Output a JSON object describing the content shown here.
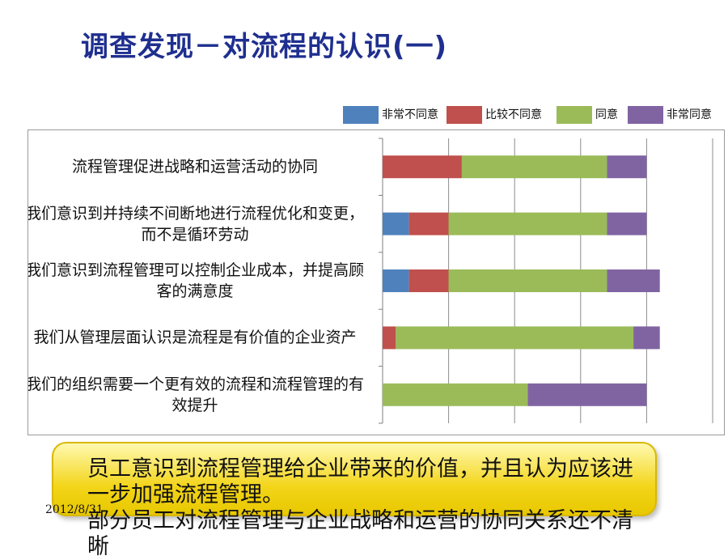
{
  "slide": {
    "title": "调查发现－对流程的认识(一)",
    "date": "2012/8/31"
  },
  "callout": {
    "lines": [
      "员工意识到流程管理给企业带来的价值，并且认为应该进一步加强流程管理。",
      "部分员工对流程管理与企业战略和运营的协同关系还不清晰"
    ]
  },
  "chart_data": {
    "type": "bar",
    "orientation": "horizontal",
    "stacked": true,
    "categories": [
      "流程管理促进战略和运营活动的协同",
      "我们意识到并持续不间断地进行流程优化和变更，而不是循环劳动",
      "我们意识到流程管理可以控制企业成本，并提高顾客的满意度",
      "我们从管理层面认识是流程是有价值的企业资产",
      "我们的组织需要一个更有效的流程和流程管理的有效提升"
    ],
    "series": [
      {
        "name": "非常不同意",
        "color": "#4f81bd",
        "values": [
          0,
          2,
          2,
          0,
          0
        ]
      },
      {
        "name": "比较不同意",
        "color": "#c0504d",
        "values": [
          6,
          3,
          3,
          1,
          0
        ]
      },
      {
        "name": "同意",
        "color": "#9bbb59",
        "values": [
          11,
          12,
          12,
          18,
          11
        ]
      },
      {
        "name": "非常同意",
        "color": "#8064a2",
        "values": [
          3,
          3,
          4,
          2,
          9
        ]
      }
    ],
    "xlim": [
      0,
      25
    ],
    "grid": true,
    "legend_position": "top-right"
  }
}
